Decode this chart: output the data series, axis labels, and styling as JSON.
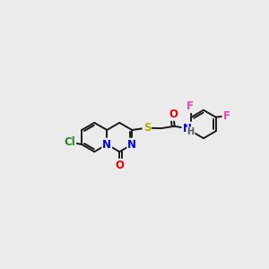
{
  "bg_color": "#ebebeb",
  "bond_color": "#1a1a1a",
  "atom_colors": {
    "N": "#0000ee",
    "O": "#ee0000",
    "S": "#bbaa00",
    "Cl": "#228822",
    "F_ortho": "#ee44bb",
    "F_para": "#ee44bb",
    "C": "#1a1a1a",
    "H": "#555555"
  },
  "bond_width": 1.4,
  "font_size": 8.5,
  "ring_r": 0.068
}
